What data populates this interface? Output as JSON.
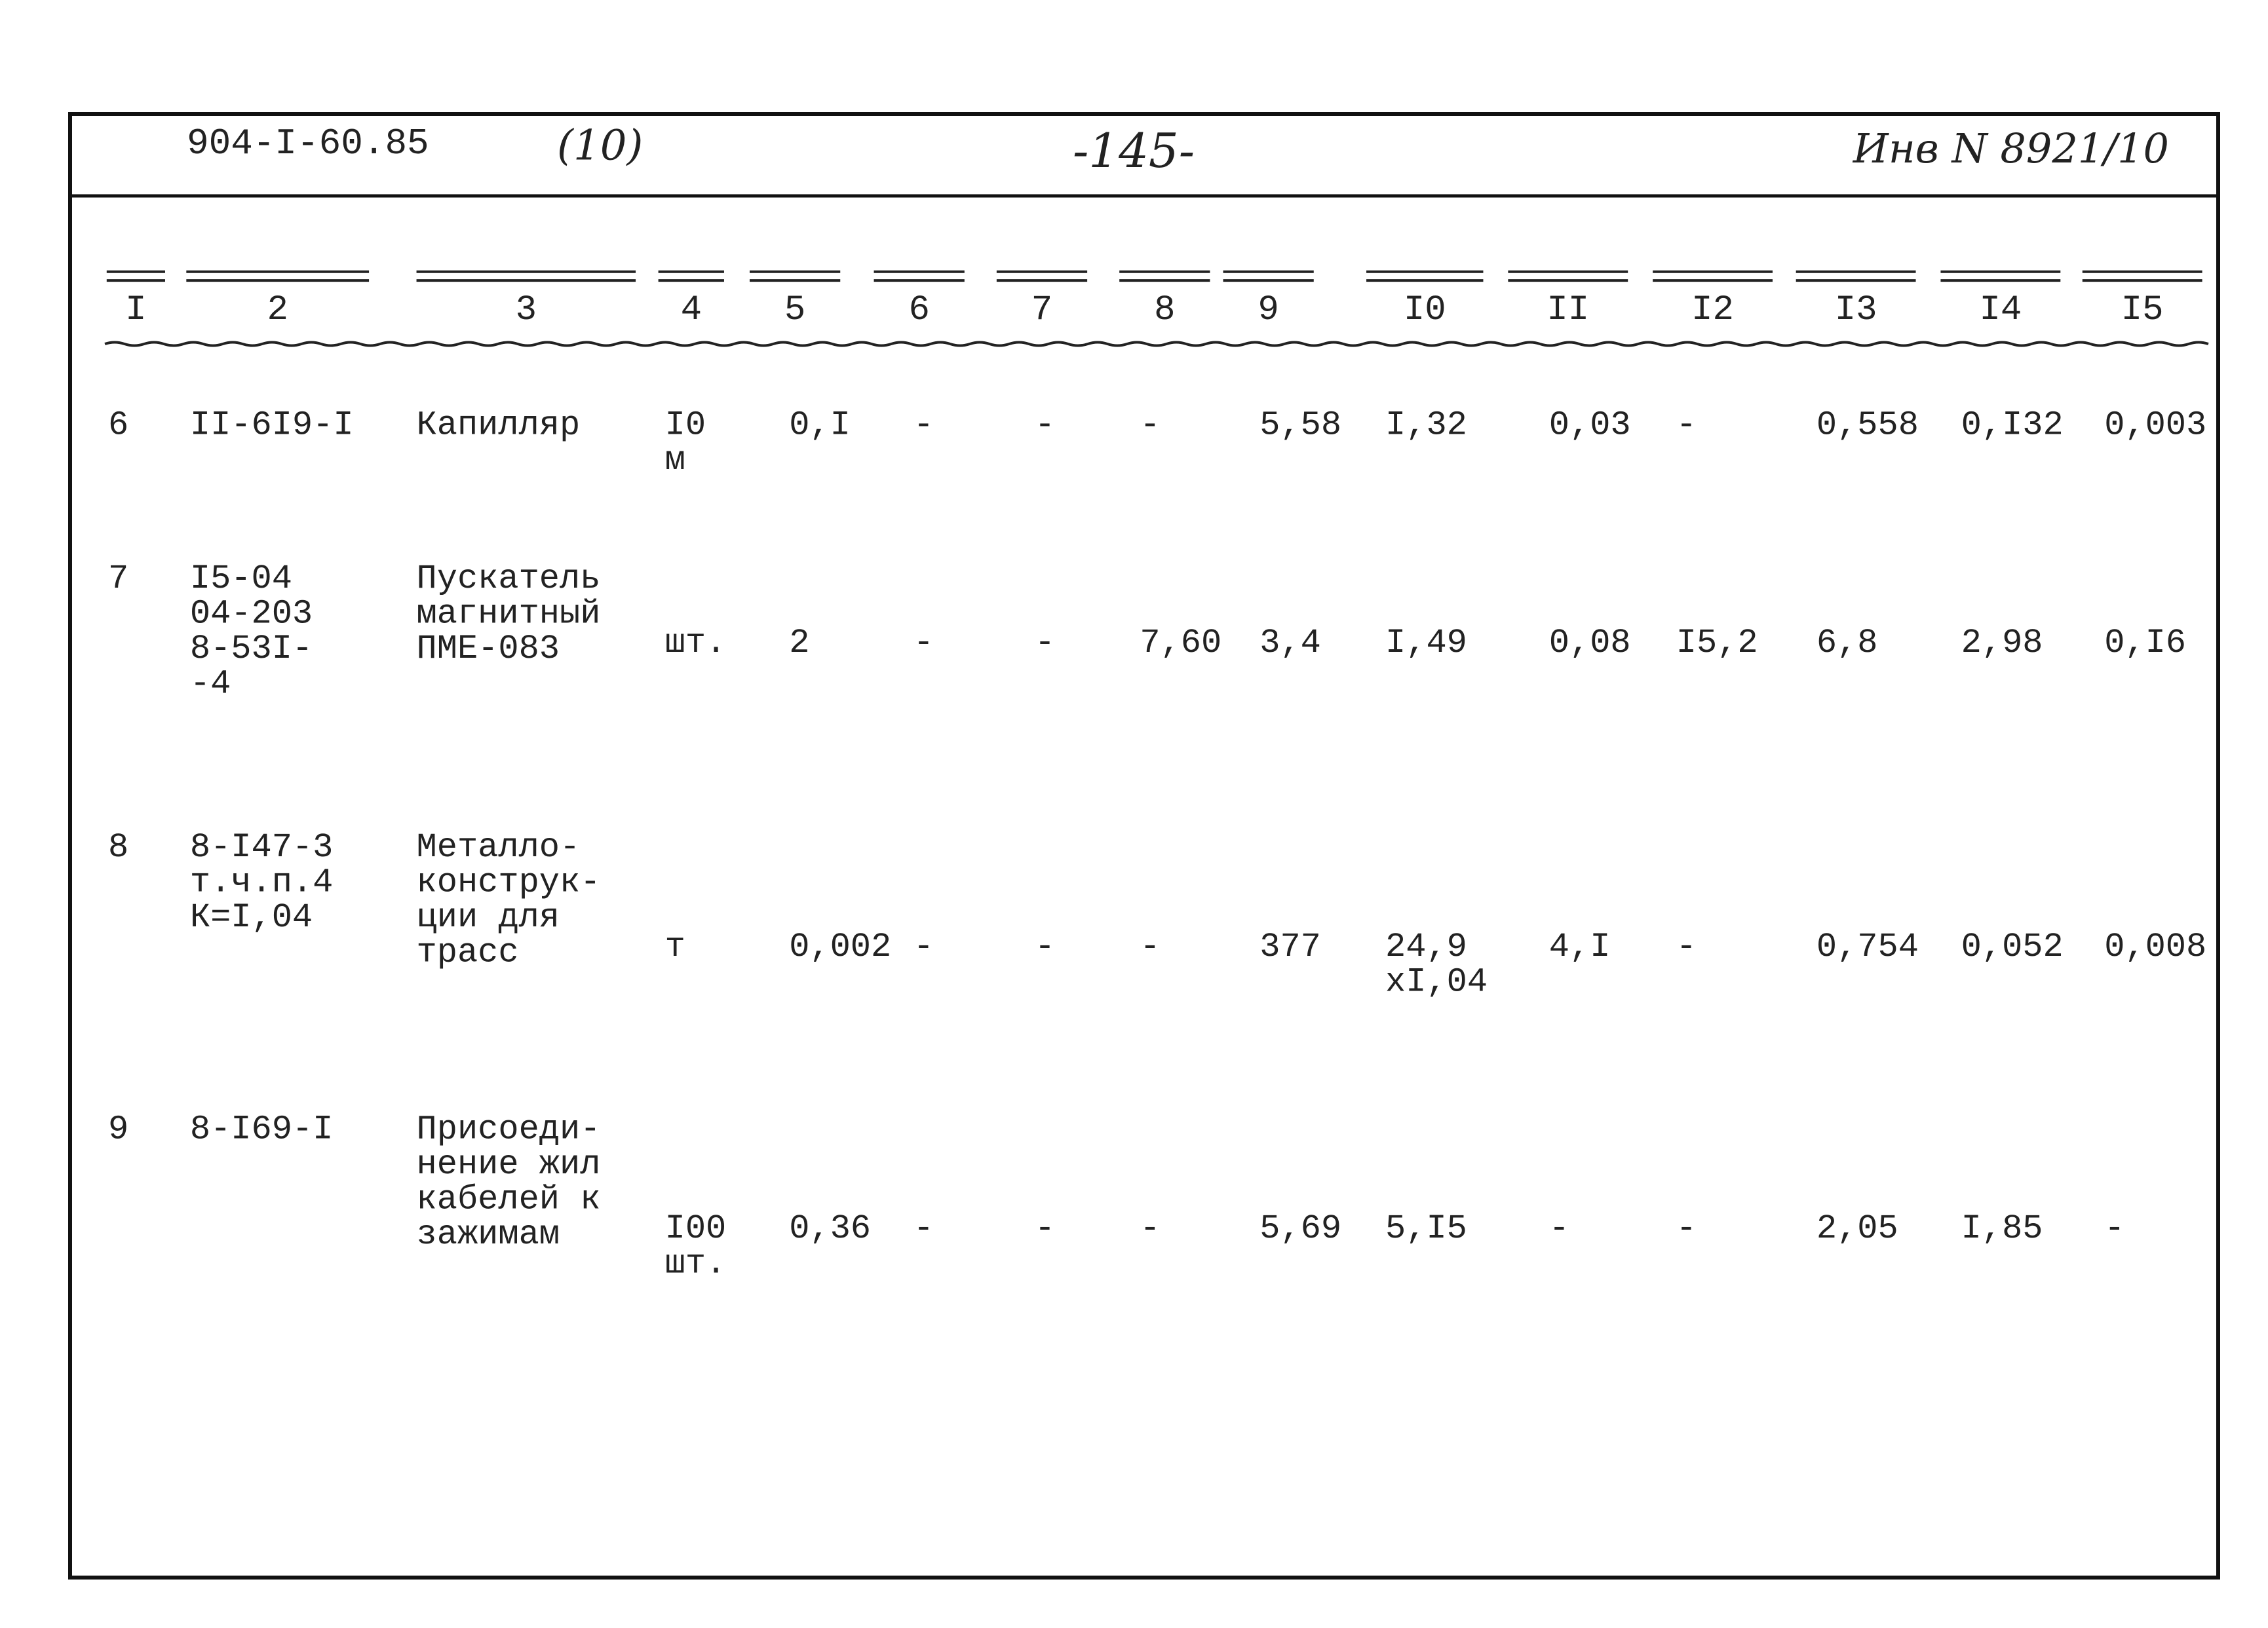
{
  "header": {
    "code": "904-I-60.85",
    "sheet": "(10)",
    "page": "-145-",
    "inventory": "Инв N 8921/10"
  },
  "table": {
    "columns": [
      "I",
      "2",
      "3",
      "4",
      "5",
      "6",
      "7",
      "8",
      "9",
      "I0",
      "II",
      "I2",
      "I3",
      "I4",
      "I5"
    ],
    "rows": [
      [
        [
          "6"
        ],
        [
          "II-6I9-I"
        ],
        [
          "Капилляр"
        ],
        [
          "I0",
          "м"
        ],
        [
          "0,I"
        ],
        [
          "-"
        ],
        [
          "-"
        ],
        [
          "-"
        ],
        [
          "5,58"
        ],
        [
          "I,32"
        ],
        [
          "0,03"
        ],
        [
          "-"
        ],
        [
          "0,558"
        ],
        [
          "0,I32"
        ],
        [
          "0,003"
        ]
      ],
      [
        [
          "7"
        ],
        [
          "I5-04",
          "04-203",
          "8-53I-",
          "-4"
        ],
        [
          "Пускатель",
          "магнитный",
          "ПМЕ-083"
        ],
        [
          "шт."
        ],
        [
          "2"
        ],
        [
          "-"
        ],
        [
          "-"
        ],
        [
          "7,60"
        ],
        [
          "3,4"
        ],
        [
          "I,49"
        ],
        [
          "0,08"
        ],
        [
          "I5,2"
        ],
        [
          "6,8"
        ],
        [
          "2,98"
        ],
        [
          "0,I6"
        ]
      ],
      [
        [
          "8"
        ],
        [
          "8-I47-3",
          "т.ч.п.4",
          "К=I,04"
        ],
        [
          "Металло-",
          "конструк-",
          "ции для",
          "трасс"
        ],
        [
          "т"
        ],
        [
          "0,002"
        ],
        [
          "-"
        ],
        [
          "-"
        ],
        [
          "-"
        ],
        [
          "377"
        ],
        [
          "24,9",
          "хI,04"
        ],
        [
          "4,I"
        ],
        [
          "-"
        ],
        [
          "0,754"
        ],
        [
          "0,052"
        ],
        [
          "0,008"
        ]
      ],
      [
        [
          "9"
        ],
        [
          "8-I69-I"
        ],
        [
          "Присоеди-",
          "нение жил",
          "кабелей к",
          "зажимам"
        ],
        [
          "I00",
          "шт."
        ],
        [
          "0,36"
        ],
        [
          "-"
        ],
        [
          "-"
        ],
        [
          "-"
        ],
        [
          "5,69"
        ],
        [
          "5,I5"
        ],
        [
          "-"
        ],
        [
          "-"
        ],
        [
          "2,05"
        ],
        [
          "I,85"
        ],
        [
          "-"
        ]
      ]
    ]
  }
}
